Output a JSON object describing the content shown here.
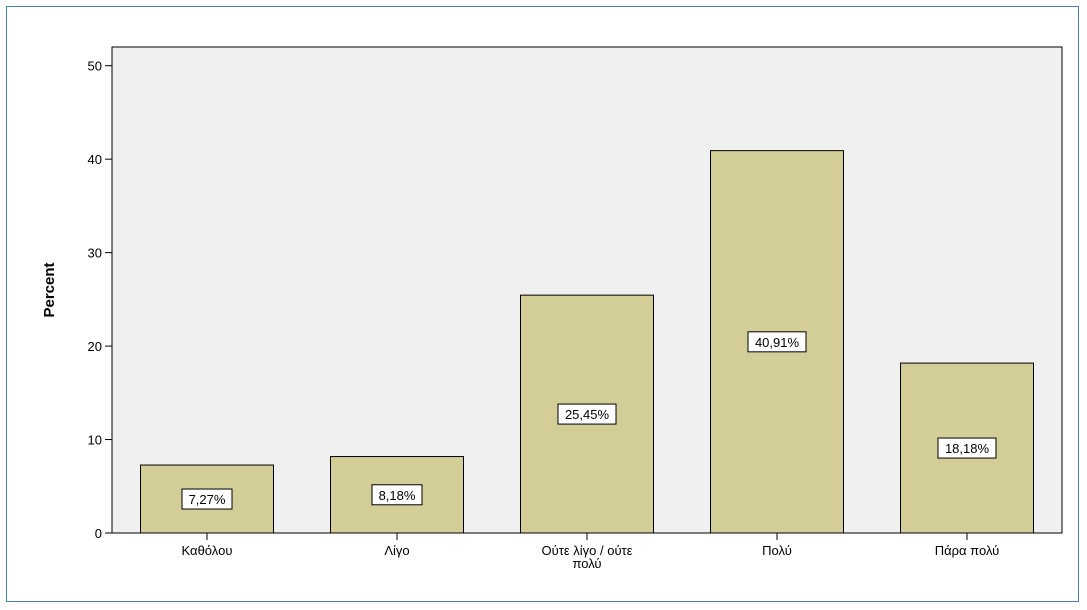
{
  "chart_data": {
    "type": "bar",
    "title": "",
    "xlabel": "",
    "ylabel": "Percent",
    "categories": [
      "Καθόλου",
      "Λίγο",
      "Ούτε λίγο / ούτε πολύ",
      "Πολύ",
      "Πάρα πολύ"
    ],
    "values": [
      7.27,
      8.18,
      25.45,
      40.91,
      18.18
    ],
    "data_labels": [
      "7,27%",
      "8,18%",
      "25,45%",
      "40,91%",
      "18,18%"
    ],
    "ylim": [
      0,
      50
    ],
    "yticks": [
      0,
      10,
      20,
      30,
      40,
      50
    ],
    "ytick_labels": [
      "0",
      "10",
      "20",
      "30",
      "40",
      "50"
    ],
    "grid": false,
    "legend": "none",
    "colors": {
      "bar_fill": "#d3cd98",
      "bar_stroke": "#000000",
      "plot_background": "#f0f0f0",
      "frame_border": "#4a7ebb",
      "label_box_fill": "#ffffff"
    }
  }
}
